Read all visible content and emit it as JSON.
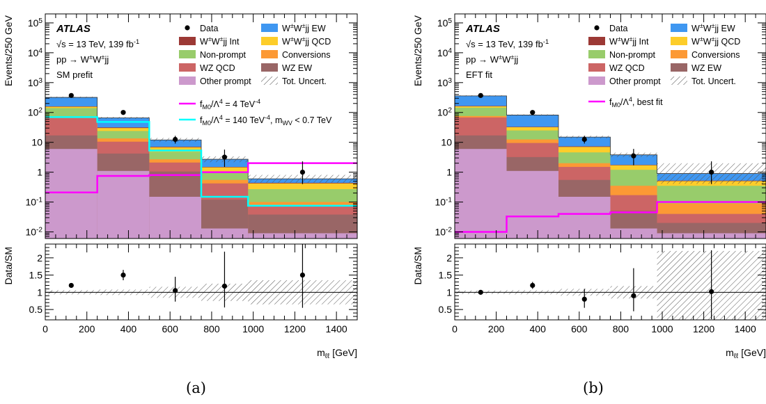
{
  "colors": {
    "ww_ew": "#3f97f1",
    "ww_int": "#9c3935",
    "ww_qcd": "#fdcd2a",
    "nonprompt": "#98cc6b",
    "conversions": "#fc9935",
    "wz_qcd": "#cc6565",
    "wz_ew": "#996666",
    "other_prompt": "#cc99cc",
    "magenta": "#ff00ff",
    "cyan": "#00ffff"
  },
  "panels": [
    {
      "caption": "(a)",
      "atlas": "ATLAS",
      "energy_label": "√s = 13 TeV, 139 fb-1",
      "process_label": "pp → W±W±jj",
      "fit_label": "SM prefit",
      "legend": {
        "data": "Data",
        "ww_ew": "W±W±jj EW",
        "ww_int": "W±W±jj Int",
        "ww_qcd": "W±W±jj QCD",
        "nonprompt": "Non-prompt",
        "conversions": "Conversions",
        "wz_qcd": "WZ QCD",
        "wz_ew": "WZ EW",
        "other_prompt": "Other prompt",
        "tot_uncert": "Tot. Uncert.",
        "eft_lines": [
          "fM0/Λ4 = 4 TeV-4",
          "fM0/Λ4 = 140 TeV-4, mWV < 0.7 TeV"
        ]
      }
    },
    {
      "caption": "(b)",
      "atlas": "ATLAS",
      "energy_label": "√s = 13 TeV, 139 fb-1",
      "process_label": "pp → W±W±jj",
      "fit_label": "EFT fit",
      "legend": {
        "data": "Data",
        "ww_ew": "W±W±jj EW",
        "ww_int": "W±W±jj Int",
        "ww_qcd": "W±W±jj QCD",
        "nonprompt": "Non-prompt",
        "conversions": "Conversions",
        "wz_qcd": "WZ QCD",
        "wz_ew": "WZ EW",
        "other_prompt": "Other prompt",
        "tot_uncert": "Tot. Uncert.",
        "eft_lines": [
          "fM0/Λ4, best fit"
        ]
      }
    }
  ],
  "chart_data": [
    {
      "type": "bar",
      "title": "",
      "xlabel": "mℓℓ [GeV]",
      "ylabel": "Events/250 GeV",
      "ratio_ylabel": "Data/SM",
      "y_scale": "log",
      "ylim": [
        0.006,
        200000
      ],
      "xlim": [
        0,
        1500
      ],
      "ratio_ylim": [
        0.2,
        2.4
      ],
      "y_ticks": [
        "10-2",
        "10-1",
        "1",
        "10",
        "102",
        "103",
        "104",
        "105"
      ],
      "x_ticks": [
        "0",
        "200",
        "400",
        "600",
        "800",
        "1000",
        "1200",
        "1400"
      ],
      "ratio_ticks": [
        "0.5",
        "1",
        "1.5",
        "2"
      ],
      "bin_edges": [
        0,
        250,
        500,
        750,
        975,
        1500
      ],
      "stack_order": [
        "other_prompt",
        "wz_ew",
        "wz_qcd",
        "conversions",
        "nonprompt",
        "ww_qcd",
        "ww_int",
        "ww_ew"
      ],
      "stack_cumulative": {
        "other_prompt": [
          6,
          1.1,
          0.15,
          0.013,
          0.009
        ],
        "wz_ew": [
          17,
          4.2,
          1.05,
          0.12,
          0.038
        ],
        "wz_qcd": [
          65,
          10.5,
          2.1,
          0.42,
          0.075
        ],
        "conversions": [
          72,
          13.5,
          2.7,
          0.55,
          0.1
        ],
        "nonprompt": [
          140,
          24,
          4.8,
          1.05,
          0.27
        ],
        "ww_qcd": [
          155,
          30,
          6.8,
          1.45,
          0.42
        ],
        "ww_int": [
          160,
          31.5,
          7.1,
          1.5,
          0.44
        ],
        "ww_ew": [
          320,
          66,
          12,
          2.7,
          0.6
        ]
      },
      "total_uncert_rel": [
        0.06,
        0.08,
        0.16,
        0.25,
        0.35
      ],
      "data": {
        "x": [
          125,
          375,
          625,
          862,
          1237
        ],
        "y": [
          370,
          100,
          12.5,
          3.2,
          1.0
        ],
        "err_lo": [
          20,
          10,
          3.4,
          1.7,
          0.6
        ],
        "err_hi": [
          20,
          10,
          4.0,
          2.5,
          1.3
        ]
      },
      "eft_series": [
        {
          "name": "fM0/Λ4 = 4 TeV-4",
          "color": "magenta",
          "values": [
            0.21,
            0.75,
            0.8,
            1.0,
            2.0
          ]
        },
        {
          "name": "fM0/Λ4 = 140 TeV-4, mWV < 0.7 TeV",
          "color": "cyan",
          "values": [
            70,
            48,
            5.3,
            0.15,
            0.075
          ]
        }
      ],
      "ratio": {
        "y": [
          1.2,
          1.5,
          1.05,
          1.18,
          1.5
        ],
        "err_lo": [
          0.07,
          0.15,
          0.32,
          0.62,
          0.95
        ],
        "err_hi": [
          0.07,
          0.15,
          0.4,
          1.0,
          1.3
        ]
      }
    },
    {
      "type": "bar",
      "title": "",
      "xlabel": "mℓℓ [GeV]",
      "ylabel": "Events/250 GeV",
      "ratio_ylabel": "Data/SM",
      "y_scale": "log",
      "ylim": [
        0.006,
        200000
      ],
      "xlim": [
        0,
        1500
      ],
      "ratio_ylim": [
        0.2,
        2.4
      ],
      "y_ticks": [
        "10-2",
        "10-1",
        "1",
        "10",
        "102",
        "103",
        "104",
        "105"
      ],
      "x_ticks": [
        "0",
        "200",
        "400",
        "600",
        "800",
        "1000",
        "1200",
        "1400"
      ],
      "ratio_ticks": [
        "0.5",
        "1",
        "1.5",
        "2"
      ],
      "bin_edges": [
        0,
        250,
        500,
        750,
        975,
        1500
      ],
      "stack_order": [
        "other_prompt",
        "wz_ew",
        "wz_qcd",
        "conversions",
        "nonprompt",
        "ww_qcd",
        "ww_int",
        "ww_ew"
      ],
      "stack_cumulative": {
        "other_prompt": [
          6,
          1.1,
          0.15,
          0.013,
          0.009
        ],
        "wz_ew": [
          17,
          3.2,
          0.55,
          0.05,
          0.02
        ],
        "wz_qcd": [
          68,
          9.5,
          1.5,
          0.17,
          0.04
        ],
        "conversions": [
          76,
          12.5,
          2.0,
          0.35,
          0.09
        ],
        "nonprompt": [
          145,
          25,
          4.6,
          1.2,
          0.35
        ],
        "ww_qcd": [
          160,
          32,
          7.0,
          1.7,
          0.5
        ],
        "ww_int": [
          165,
          33,
          7.3,
          1.75,
          0.52
        ],
        "ww_ew": [
          360,
          82,
          15,
          3.8,
          0.9
        ]
      },
      "total_uncert_rel": [
        0.05,
        0.06,
        0.1,
        0.18,
        1.2
      ],
      "data": {
        "x": [
          125,
          375,
          625,
          862,
          1237
        ],
        "y": [
          370,
          100,
          12.5,
          3.5,
          1.0
        ],
        "err_lo": [
          20,
          10,
          3.4,
          1.8,
          0.6
        ],
        "err_hi": [
          20,
          10,
          4.0,
          2.5,
          1.3
        ]
      },
      "eft_series": [
        {
          "name": "fM0/Λ4, best fit",
          "color": "magenta",
          "values": [
            0.01,
            0.033,
            0.04,
            0.045,
            0.1
          ]
        }
      ],
      "ratio": {
        "y": [
          1.0,
          1.2,
          0.8,
          0.9,
          1.02
        ],
        "err_lo": [
          0.05,
          0.1,
          0.25,
          0.45,
          0.8
        ],
        "err_hi": [
          0.05,
          0.1,
          0.3,
          0.8,
          1.2
        ]
      }
    }
  ]
}
